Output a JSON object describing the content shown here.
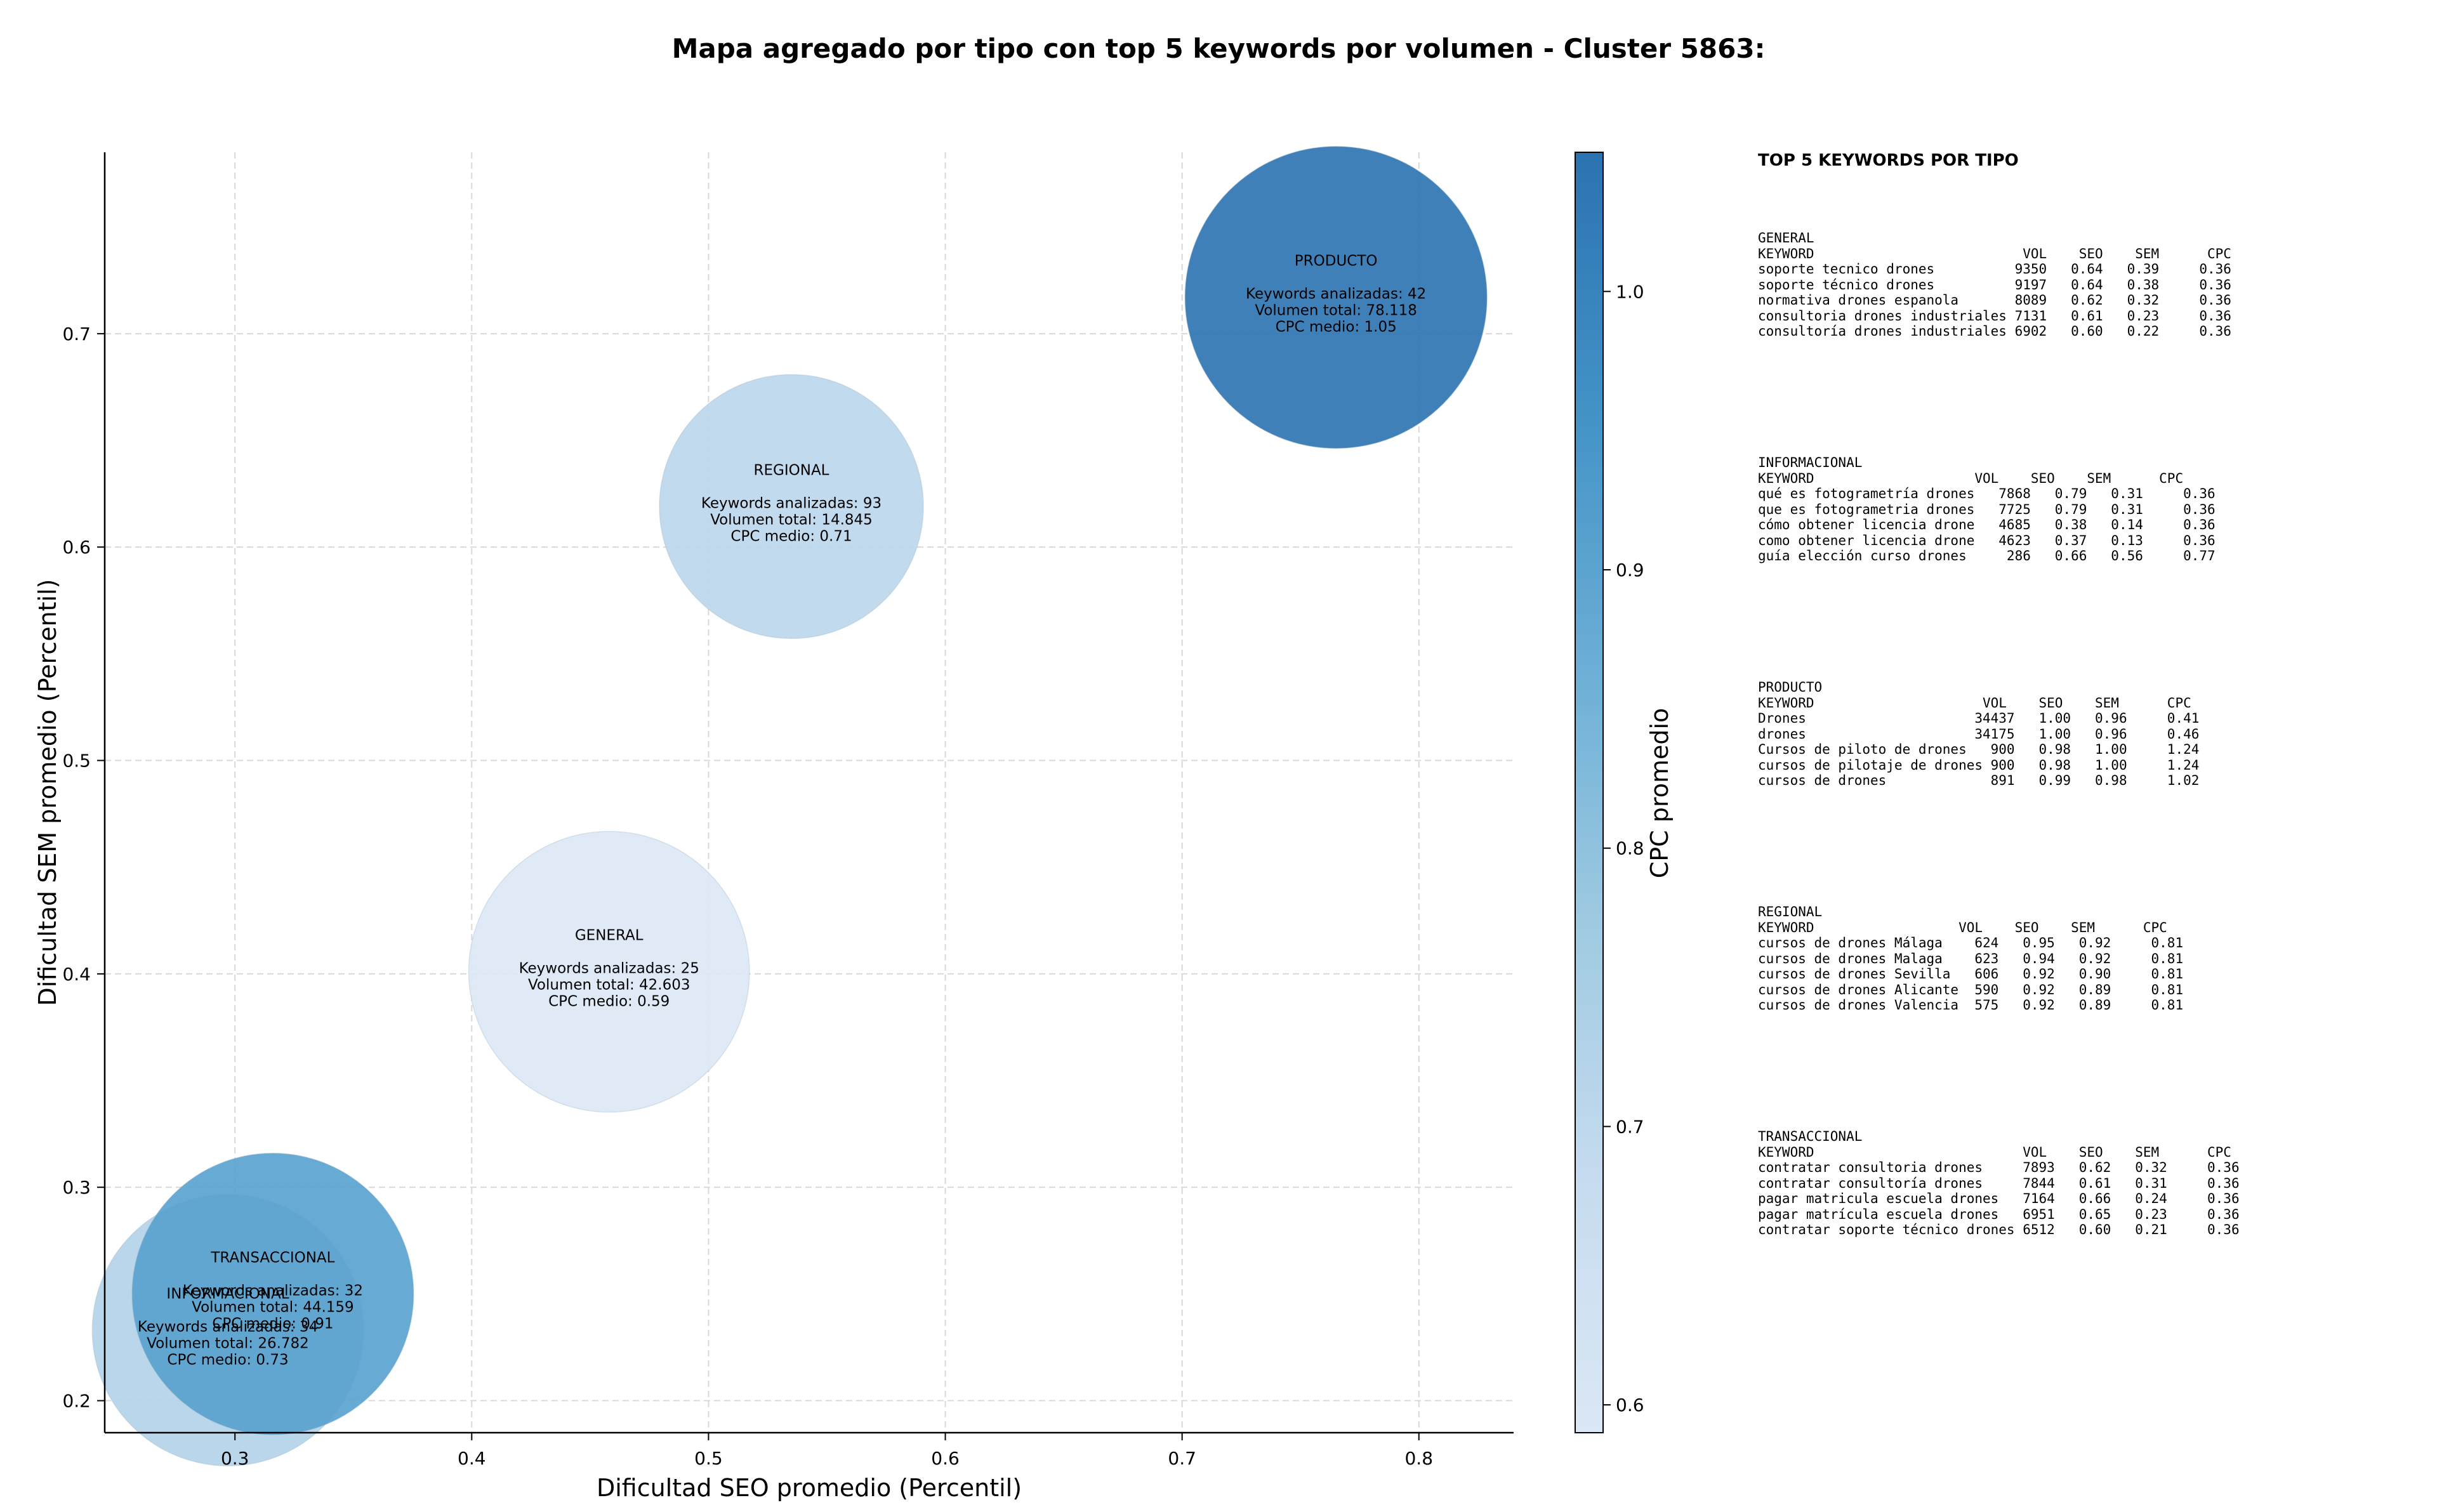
{
  "title": "Mapa agregado por tipo con top 5 keywords por volumen - Cluster 5863:",
  "chart_data": {
    "type": "scatter",
    "subtype": "bubble",
    "xlabel": "Dificultad SEO promedio (Percentil)",
    "ylabel": "Dificultad SEM promedio (Percentil)",
    "xlim": [
      0.245,
      0.84
    ],
    "ylim": [
      0.185,
      0.785
    ],
    "xticks": [
      0.3,
      0.4,
      0.5,
      0.6,
      0.7,
      0.8
    ],
    "yticks": [
      0.2,
      0.3,
      0.4,
      0.5,
      0.6,
      0.7
    ],
    "grid": true,
    "colorbar": {
      "label": "CPC promedio",
      "range": [
        0.59,
        1.05
      ],
      "ticks": [
        0.6,
        0.7,
        0.8,
        0.9,
        1.0
      ],
      "colormap": [
        "#dbe8f5",
        "#c6dbef",
        "#9ecae1",
        "#6baed6",
        "#4292c6",
        "#2b72b1"
      ]
    },
    "points": [
      {
        "name": "INFORMACIONAL",
        "x": 0.297,
        "y": 0.233,
        "keywords": 34,
        "volume": 26782,
        "cpc": 0.73,
        "line1": "Keywords analizadas: 34",
        "line2": "Volumen total: 26.782",
        "line3": "CPC medio: 0.73"
      },
      {
        "name": "TRANSACCIONAL",
        "x": 0.316,
        "y": 0.25,
        "keywords": 32,
        "volume": 44159,
        "cpc": 0.91,
        "line1": "Keywords analizadas: 32",
        "line2": "Volumen total: 44.159",
        "line3": "CPC medio: 0.91"
      },
      {
        "name": "GENERAL",
        "x": 0.458,
        "y": 0.401,
        "keywords": 25,
        "volume": 42603,
        "cpc": 0.59,
        "line1": "Keywords analizadas: 25",
        "line2": "Volumen total: 42.603",
        "line3": "CPC medio: 0.59"
      },
      {
        "name": "REGIONAL",
        "x": 0.535,
        "y": 0.619,
        "keywords": 93,
        "volume": 14845,
        "cpc": 0.71,
        "line1": "Keywords analizadas: 93",
        "line2": "Volumen total: 14.845",
        "line3": "CPC medio: 0.71"
      },
      {
        "name": "PRODUCTO",
        "x": 0.765,
        "y": 0.717,
        "keywords": 42,
        "volume": 78118,
        "cpc": 1.05,
        "line1": "Keywords analizadas: 42",
        "line2": "Volumen total: 78.118",
        "line3": "CPC medio: 1.05"
      }
    ]
  },
  "side_panel": {
    "title": "TOP 5 KEYWORDS POR TIPO",
    "sections": [
      {
        "type": "GENERAL",
        "header": "KEYWORD                          VOL    SEO    SEM      CPC",
        "rows": [
          "soporte tecnico drones          9350   0.64   0.39     0.36",
          "soporte técnico drones          9197   0.64   0.38     0.36",
          "normativa drones espanola       8089   0.62   0.32     0.36",
          "consultoria drones industriales 7131   0.61   0.23     0.36",
          "consultoría drones industriales 6902   0.60   0.22     0.36"
        ]
      },
      {
        "type": "INFORMACIONAL",
        "header": "KEYWORD                    VOL    SEO    SEM      CPC",
        "rows": [
          "qué es fotogrametría drones   7868   0.79   0.31     0.36",
          "que es fotogrametria drones   7725   0.79   0.31     0.36",
          "cómo obtener licencia drone   4685   0.38   0.14     0.36",
          "como obtener licencia drone   4623   0.37   0.13     0.36",
          "guía elección curso drones     286   0.66   0.56     0.77"
        ]
      },
      {
        "type": "PRODUCTO",
        "header": "KEYWORD                     VOL    SEO    SEM      CPC",
        "rows": [
          "Drones                     34437   1.00   0.96     0.41",
          "drones                     34175   1.00   0.96     0.46",
          "Cursos de piloto de drones   900   0.98   1.00     1.24",
          "cursos de pilotaje de drones 900   0.98   1.00     1.24",
          "cursos de drones             891   0.99   0.98     1.02"
        ]
      },
      {
        "type": "REGIONAL",
        "header": "KEYWORD                  VOL    SEO    SEM      CPC",
        "rows": [
          "cursos de drones Málaga    624   0.95   0.92     0.81",
          "cursos de drones Malaga    623   0.94   0.92     0.81",
          "cursos de drones Sevilla   606   0.92   0.90     0.81",
          "cursos de drones Alicante  590   0.92   0.89     0.81",
          "cursos de drones Valencia  575   0.92   0.89     0.81"
        ]
      },
      {
        "type": "TRANSACCIONAL",
        "header": "KEYWORD                          VOL    SEO    SEM      CPC",
        "rows": [
          "contratar consultoria drones     7893   0.62   0.32     0.36",
          "contratar consultoría drones     7844   0.61   0.31     0.36",
          "pagar matricula escuela drones   7164   0.66   0.24     0.36",
          "pagar matrícula escuela drones   6951   0.65   0.23     0.36",
          "contratar soporte técnico drones 6512   0.60   0.21     0.36"
        ]
      }
    ]
  }
}
